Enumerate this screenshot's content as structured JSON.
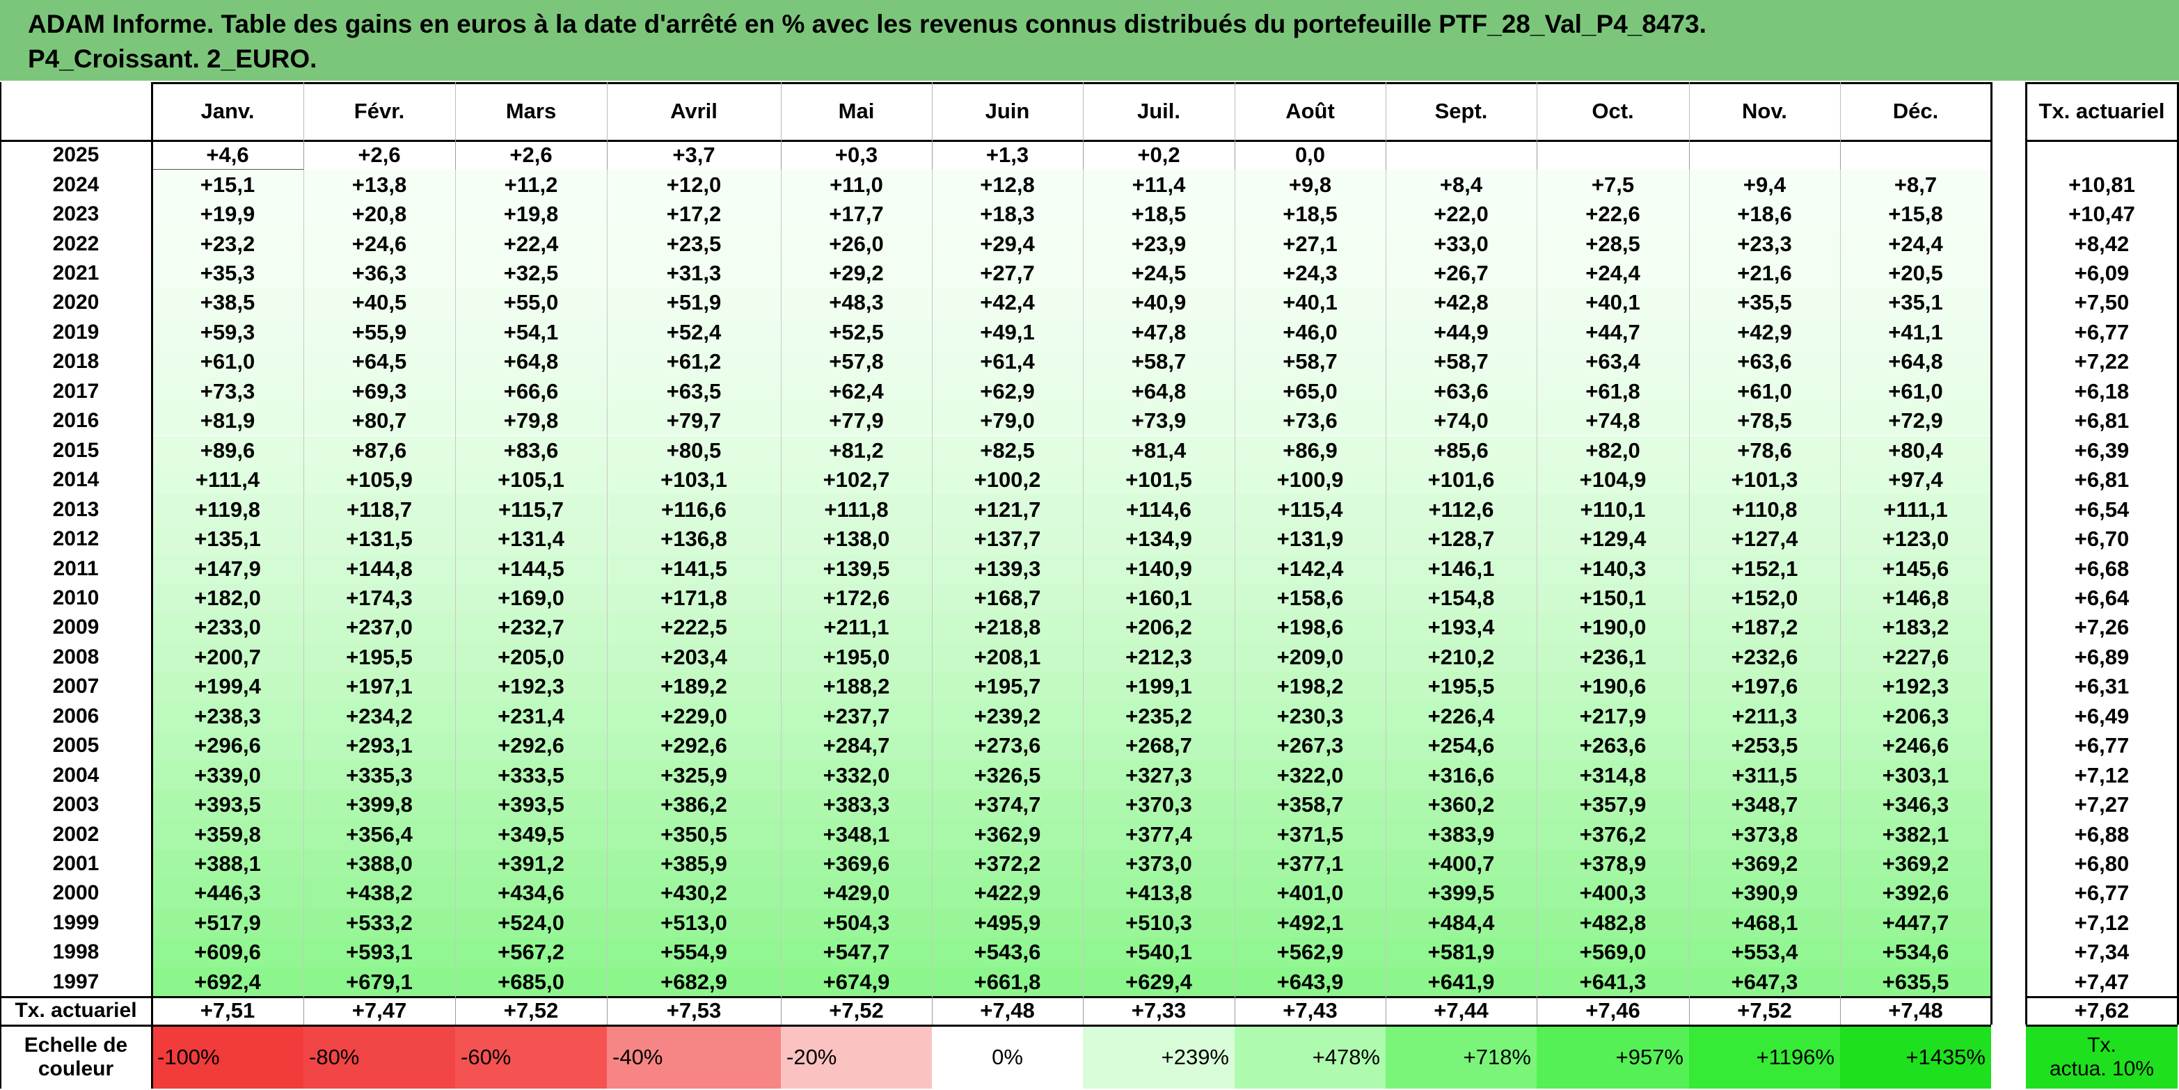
{
  "header": {
    "title_line1": "ADAM Informe. Table des gains en euros à la date d'arrêté en % avec les revenus connus distribués du portefeuille PTF_28_Val_P4_8473.",
    "title_line2": "P4_Croissant. 2_EURO."
  },
  "table": {
    "months": [
      "Janv.",
      "Févr.",
      "Mars",
      "Avril",
      "Mai",
      "Juin",
      "Juil.",
      "Août",
      "Sept.",
      "Oct.",
      "Nov.",
      "Déc."
    ],
    "rate_header": "Tx. actuariel",
    "rows": [
      {
        "year": "2025",
        "values": [
          "+4,6",
          "+2,6",
          "+2,6",
          "+3,7",
          "+0,3",
          "+1,3",
          "+0,2",
          "0,0",
          "",
          "",
          "",
          ""
        ],
        "rate": ""
      },
      {
        "year": "2024",
        "values": [
          "+15,1",
          "+13,8",
          "+11,2",
          "+12,0",
          "+11,0",
          "+12,8",
          "+11,4",
          "+9,8",
          "+8,4",
          "+7,5",
          "+9,4",
          "+8,7"
        ],
        "rate": "+10,81"
      },
      {
        "year": "2023",
        "values": [
          "+19,9",
          "+20,8",
          "+19,8",
          "+17,2",
          "+17,7",
          "+18,3",
          "+18,5",
          "+18,5",
          "+22,0",
          "+22,6",
          "+18,6",
          "+15,8"
        ],
        "rate": "+10,47"
      },
      {
        "year": "2022",
        "values": [
          "+23,2",
          "+24,6",
          "+22,4",
          "+23,5",
          "+26,0",
          "+29,4",
          "+23,9",
          "+27,1",
          "+33,0",
          "+28,5",
          "+23,3",
          "+24,4"
        ],
        "rate": "+8,42"
      },
      {
        "year": "2021",
        "values": [
          "+35,3",
          "+36,3",
          "+32,5",
          "+31,3",
          "+29,2",
          "+27,7",
          "+24,5",
          "+24,3",
          "+26,7",
          "+24,4",
          "+21,6",
          "+20,5"
        ],
        "rate": "+6,09"
      },
      {
        "year": "2020",
        "values": [
          "+38,5",
          "+40,5",
          "+55,0",
          "+51,9",
          "+48,3",
          "+42,4",
          "+40,9",
          "+40,1",
          "+42,8",
          "+40,1",
          "+35,5",
          "+35,1"
        ],
        "rate": "+7,50"
      },
      {
        "year": "2019",
        "values": [
          "+59,3",
          "+55,9",
          "+54,1",
          "+52,4",
          "+52,5",
          "+49,1",
          "+47,8",
          "+46,0",
          "+44,9",
          "+44,7",
          "+42,9",
          "+41,1"
        ],
        "rate": "+6,77"
      },
      {
        "year": "2018",
        "values": [
          "+61,0",
          "+64,5",
          "+64,8",
          "+61,2",
          "+57,8",
          "+61,4",
          "+58,7",
          "+58,7",
          "+58,7",
          "+63,4",
          "+63,6",
          "+64,8"
        ],
        "rate": "+7,22"
      },
      {
        "year": "2017",
        "values": [
          "+73,3",
          "+69,3",
          "+66,6",
          "+63,5",
          "+62,4",
          "+62,9",
          "+64,8",
          "+65,0",
          "+63,6",
          "+61,8",
          "+61,0",
          "+61,0"
        ],
        "rate": "+6,18"
      },
      {
        "year": "2016",
        "values": [
          "+81,9",
          "+80,7",
          "+79,8",
          "+79,7",
          "+77,9",
          "+79,0",
          "+73,9",
          "+73,6",
          "+74,0",
          "+74,8",
          "+78,5",
          "+72,9"
        ],
        "rate": "+6,81"
      },
      {
        "year": "2015",
        "values": [
          "+89,6",
          "+87,6",
          "+83,6",
          "+80,5",
          "+81,2",
          "+82,5",
          "+81,4",
          "+86,9",
          "+85,6",
          "+82,0",
          "+78,6",
          "+80,4"
        ],
        "rate": "+6,39"
      },
      {
        "year": "2014",
        "values": [
          "+111,4",
          "+105,9",
          "+105,1",
          "+103,1",
          "+102,7",
          "+100,2",
          "+101,5",
          "+100,9",
          "+101,6",
          "+104,9",
          "+101,3",
          "+97,4"
        ],
        "rate": "+6,81"
      },
      {
        "year": "2013",
        "values": [
          "+119,8",
          "+118,7",
          "+115,7",
          "+116,6",
          "+111,8",
          "+121,7",
          "+114,6",
          "+115,4",
          "+112,6",
          "+110,1",
          "+110,8",
          "+111,1"
        ],
        "rate": "+6,54"
      },
      {
        "year": "2012",
        "values": [
          "+135,1",
          "+131,5",
          "+131,4",
          "+136,8",
          "+138,0",
          "+137,7",
          "+134,9",
          "+131,9",
          "+128,7",
          "+129,4",
          "+127,4",
          "+123,0"
        ],
        "rate": "+6,70"
      },
      {
        "year": "2011",
        "values": [
          "+147,9",
          "+144,8",
          "+144,5",
          "+141,5",
          "+139,5",
          "+139,3",
          "+140,9",
          "+142,4",
          "+146,1",
          "+140,3",
          "+152,1",
          "+145,6"
        ],
        "rate": "+6,68"
      },
      {
        "year": "2010",
        "values": [
          "+182,0",
          "+174,3",
          "+169,0",
          "+171,8",
          "+172,6",
          "+168,7",
          "+160,1",
          "+158,6",
          "+154,8",
          "+150,1",
          "+152,0",
          "+146,8"
        ],
        "rate": "+6,64"
      },
      {
        "year": "2009",
        "values": [
          "+233,0",
          "+237,0",
          "+232,7",
          "+222,5",
          "+211,1",
          "+218,8",
          "+206,2",
          "+198,6",
          "+193,4",
          "+190,0",
          "+187,2",
          "+183,2"
        ],
        "rate": "+7,26"
      },
      {
        "year": "2008",
        "values": [
          "+200,7",
          "+195,5",
          "+205,0",
          "+203,4",
          "+195,0",
          "+208,1",
          "+212,3",
          "+209,0",
          "+210,2",
          "+236,1",
          "+232,6",
          "+227,6"
        ],
        "rate": "+6,89"
      },
      {
        "year": "2007",
        "values": [
          "+199,4",
          "+197,1",
          "+192,3",
          "+189,2",
          "+188,2",
          "+195,7",
          "+199,1",
          "+198,2",
          "+195,5",
          "+190,6",
          "+197,6",
          "+192,3"
        ],
        "rate": "+6,31"
      },
      {
        "year": "2006",
        "values": [
          "+238,3",
          "+234,2",
          "+231,4",
          "+229,0",
          "+237,7",
          "+239,2",
          "+235,2",
          "+230,3",
          "+226,4",
          "+217,9",
          "+211,3",
          "+206,3"
        ],
        "rate": "+6,49"
      },
      {
        "year": "2005",
        "values": [
          "+296,6",
          "+293,1",
          "+292,6",
          "+292,6",
          "+284,7",
          "+273,6",
          "+268,7",
          "+267,3",
          "+254,6",
          "+263,6",
          "+253,5",
          "+246,6"
        ],
        "rate": "+6,77"
      },
      {
        "year": "2004",
        "values": [
          "+339,0",
          "+335,3",
          "+333,5",
          "+325,9",
          "+332,0",
          "+326,5",
          "+327,3",
          "+322,0",
          "+316,6",
          "+314,8",
          "+311,5",
          "+303,1"
        ],
        "rate": "+7,12"
      },
      {
        "year": "2003",
        "values": [
          "+393,5",
          "+399,8",
          "+393,5",
          "+386,2",
          "+383,3",
          "+374,7",
          "+370,3",
          "+358,7",
          "+360,2",
          "+357,9",
          "+348,7",
          "+346,3"
        ],
        "rate": "+7,27"
      },
      {
        "year": "2002",
        "values": [
          "+359,8",
          "+356,4",
          "+349,5",
          "+350,5",
          "+348,1",
          "+362,9",
          "+377,4",
          "+371,5",
          "+383,9",
          "+376,2",
          "+373,8",
          "+382,1"
        ],
        "rate": "+6,88"
      },
      {
        "year": "2001",
        "values": [
          "+388,1",
          "+388,0",
          "+391,2",
          "+385,9",
          "+369,6",
          "+372,2",
          "+373,0",
          "+377,1",
          "+400,7",
          "+378,9",
          "+369,2",
          "+369,2"
        ],
        "rate": "+6,80"
      },
      {
        "year": "2000",
        "values": [
          "+446,3",
          "+438,2",
          "+434,6",
          "+430,2",
          "+429,0",
          "+422,9",
          "+413,8",
          "+401,0",
          "+399,5",
          "+400,3",
          "+390,9",
          "+392,6"
        ],
        "rate": "+6,77"
      },
      {
        "year": "1999",
        "values": [
          "+517,9",
          "+533,2",
          "+524,0",
          "+513,0",
          "+504,3",
          "+495,9",
          "+510,3",
          "+492,1",
          "+484,4",
          "+482,8",
          "+468,1",
          "+447,7"
        ],
        "rate": "+7,12"
      },
      {
        "year": "1998",
        "values": [
          "+609,6",
          "+593,1",
          "+567,2",
          "+554,9",
          "+547,7",
          "+543,6",
          "+540,1",
          "+562,9",
          "+581,9",
          "+569,0",
          "+553,4",
          "+534,6"
        ],
        "rate": "+7,34"
      },
      {
        "year": "1997",
        "values": [
          "+692,4",
          "+679,1",
          "+685,0",
          "+682,9",
          "+674,9",
          "+661,8",
          "+629,4",
          "+643,9",
          "+641,9",
          "+641,3",
          "+647,3",
          "+635,5"
        ],
        "rate": "+7,47"
      }
    ],
    "footer": {
      "label": "Tx. actuariel",
      "values": [
        "+7,51",
        "+7,47",
        "+7,52",
        "+7,53",
        "+7,52",
        "+7,48",
        "+7,33",
        "+7,43",
        "+7,44",
        "+7,46",
        "+7,52",
        "+7,48"
      ],
      "rate": "+7,62"
    }
  },
  "scale": {
    "label_line1": "Echelle de",
    "label_line2": "couleur",
    "cells": [
      {
        "text": "-100%",
        "color": "#f23b3b",
        "align": "left"
      },
      {
        "text": "-80%",
        "color": "#f24545",
        "align": "left"
      },
      {
        "text": "-60%",
        "color": "#f55252",
        "align": "left"
      },
      {
        "text": "-40%",
        "color": "#f78585",
        "align": "left"
      },
      {
        "text": "-20%",
        "color": "#fbc2c2",
        "align": "left"
      },
      {
        "text": "0%",
        "color": "#ffffff",
        "align": "center"
      },
      {
        "text": "+239%",
        "color": "#d9fdd9",
        "align": "right"
      },
      {
        "text": "+478%",
        "color": "#aefaae",
        "align": "right"
      },
      {
        "text": "+718%",
        "color": "#7af57a",
        "align": "right"
      },
      {
        "text": "+957%",
        "color": "#55f055",
        "align": "right"
      },
      {
        "text": "+1196%",
        "color": "#36ea36",
        "align": "right"
      },
      {
        "text": "+1435%",
        "color": "#1ee01e",
        "align": "right"
      }
    ],
    "rate_label_line1": "Tx.",
    "rate_label_line2": "actua. 10%",
    "rate_color": "#1ee01e"
  },
  "colors": {
    "header_bg": "#7cc67c",
    "row_gradient_light": "#f7fff7",
    "row_gradient_dark": "#8cf58c"
  }
}
